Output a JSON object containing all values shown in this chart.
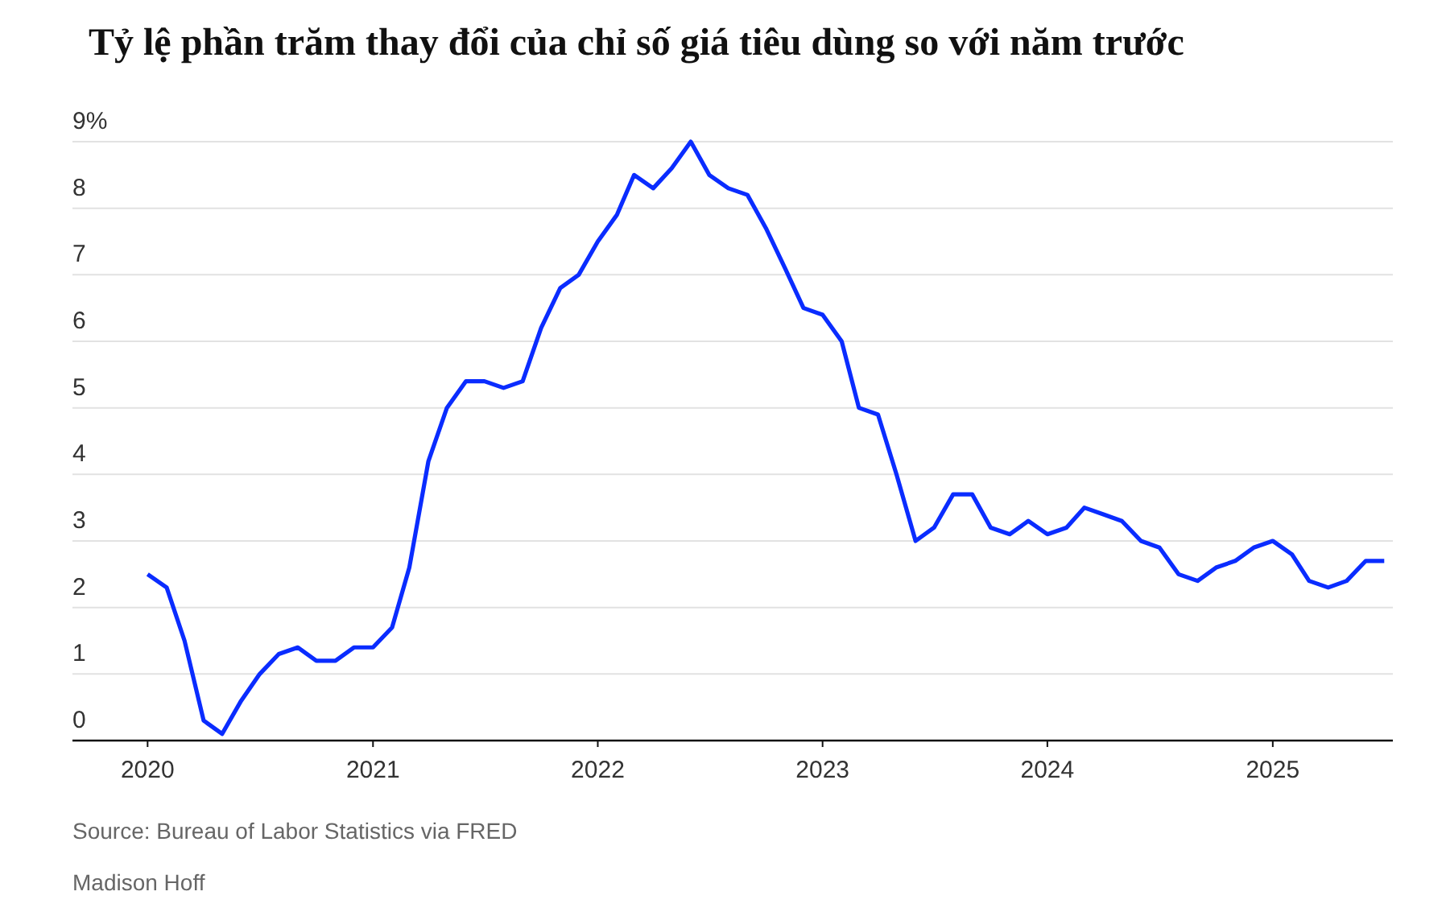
{
  "chart_data": {
    "type": "line",
    "title": "Tỷ lệ phần trăm thay đổi của chỉ số giá tiêu dùng so với năm trước",
    "x": [
      "2020-01",
      "2020-02",
      "2020-03",
      "2020-04",
      "2020-05",
      "2020-06",
      "2020-07",
      "2020-08",
      "2020-09",
      "2020-10",
      "2020-11",
      "2020-12",
      "2021-01",
      "2021-02",
      "2021-03",
      "2021-04",
      "2021-05",
      "2021-06",
      "2021-07",
      "2021-08",
      "2021-09",
      "2021-10",
      "2021-11",
      "2021-12",
      "2022-01",
      "2022-02",
      "2022-03",
      "2022-04",
      "2022-05",
      "2022-06",
      "2022-07",
      "2022-08",
      "2022-09",
      "2022-10",
      "2022-11",
      "2022-12",
      "2023-01",
      "2023-02",
      "2023-03",
      "2023-04",
      "2023-05",
      "2023-06",
      "2023-07",
      "2023-08",
      "2023-09",
      "2023-10",
      "2023-11",
      "2023-12",
      "2024-01",
      "2024-02",
      "2024-03",
      "2024-04",
      "2024-05",
      "2024-06",
      "2024-07",
      "2024-08",
      "2024-09",
      "2024-10",
      "2024-11",
      "2024-12",
      "2025-01",
      "2025-02",
      "2025-03",
      "2025-04",
      "2025-05",
      "2025-06",
      "2025-07"
    ],
    "series": [
      {
        "color": "#0a2cff",
        "values": [
          2.5,
          2.3,
          1.5,
          0.3,
          0.1,
          0.6,
          1.0,
          1.3,
          1.4,
          1.2,
          1.2,
          1.4,
          1.4,
          1.7,
          2.6,
          4.2,
          5.0,
          5.4,
          5.4,
          5.3,
          5.4,
          6.2,
          6.8,
          7.0,
          7.5,
          7.9,
          8.5,
          8.3,
          8.6,
          9.0,
          8.5,
          8.3,
          8.2,
          7.7,
          7.1,
          6.5,
          6.4,
          6.0,
          5.0,
          4.9,
          4.0,
          3.0,
          3.2,
          3.7,
          3.7,
          3.2,
          3.1,
          3.3,
          3.1,
          3.2,
          3.5,
          3.4,
          3.3,
          3.0,
          2.9,
          2.5,
          2.4,
          2.6,
          2.7,
          2.9,
          3.0,
          2.8,
          2.4,
          2.3,
          2.4,
          2.7,
          2.7
        ]
      }
    ],
    "xlim": [
      "2019-09",
      "2025-07-15"
    ],
    "xticks": [
      {
        "value": "2020-01",
        "label": "2020"
      },
      {
        "value": "2021-01",
        "label": "2021"
      },
      {
        "value": "2022-01",
        "label": "2022"
      },
      {
        "value": "2023-01",
        "label": "2023"
      },
      {
        "value": "2024-01",
        "label": "2024"
      },
      {
        "value": "2025-01",
        "label": "2025"
      }
    ],
    "ylim": [
      0,
      9
    ],
    "yticks": [
      0,
      1,
      2,
      3,
      4,
      5,
      6,
      7,
      8,
      {
        "value": 9,
        "label": "9%"
      }
    ],
    "grid": "y",
    "marker": "none",
    "line_style": "solid",
    "annotations": [
      "Source: Bureau of Labor Statistics via FRED",
      "Madison Hoff"
    ]
  }
}
